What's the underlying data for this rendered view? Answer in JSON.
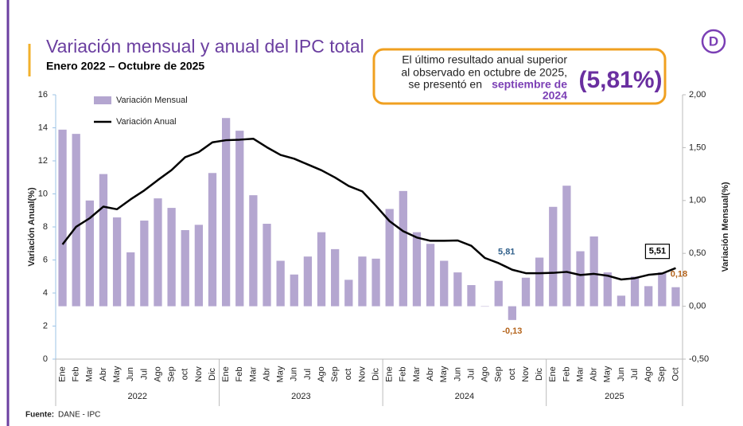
{
  "logo": "D",
  "chart_data": {
    "type": "bar-line",
    "title": "Variación mensual y anual del IPC total",
    "subtitle": "Enero 2022 – Octubre de 2025",
    "y_label": "Variación Anual(%)",
    "y2_label": "Variación Mensual(%)",
    "categories": [
      "Ene",
      "Feb",
      "Mar",
      "Abr",
      "May",
      "Jun",
      "Jul",
      "Ago",
      "Sep",
      "oct",
      "Nov",
      "Dic",
      "Ene",
      "Feb",
      "Mar",
      "Abr",
      "May",
      "Jun",
      "Jul",
      "Ago",
      "Sep",
      "oct",
      "Nov",
      "Dic",
      "Ene",
      "Feb",
      "Mar",
      "Abr",
      "May",
      "Jun",
      "Jul",
      "Ago",
      "Sep",
      "oct",
      "Nov",
      "Dic",
      "Ene",
      "Feb",
      "Mar",
      "Abr",
      "May",
      "Jun",
      "Jul",
      "Ago",
      "Sep",
      "Oct"
    ],
    "year_groups": [
      "2022",
      "2023",
      "2024",
      "2025"
    ],
    "series": [
      {
        "name": "Variación Mensual",
        "kind": "bar",
        "axis": "y2",
        "color": "#b4a6d0",
        "values": [
          1.67,
          1.63,
          1.0,
          1.25,
          0.84,
          0.51,
          0.81,
          1.02,
          0.93,
          0.72,
          0.77,
          1.26,
          1.78,
          1.66,
          1.05,
          0.78,
          0.43,
          0.3,
          0.47,
          0.7,
          0.54,
          0.25,
          0.47,
          0.45,
          0.92,
          1.09,
          0.7,
          0.59,
          0.43,
          0.32,
          0.2,
          0.0,
          0.24,
          -0.13,
          0.27,
          0.46,
          0.94,
          1.14,
          0.52,
          0.66,
          0.32,
          0.1,
          0.28,
          0.19,
          0.32,
          0.18
        ],
        "value_labels": [
          null,
          null,
          null,
          null,
          null,
          null,
          null,
          null,
          null,
          null,
          null,
          null,
          null,
          null,
          null,
          null,
          null,
          null,
          null,
          null,
          null,
          null,
          null,
          null,
          null,
          null,
          null,
          null,
          null,
          null,
          null,
          null,
          null,
          "-0,13",
          null,
          null,
          null,
          null,
          null,
          null,
          null,
          null,
          null,
          null,
          null,
          "0,18"
        ]
      },
      {
        "name": "Variación Anual",
        "kind": "line",
        "color": "#000000",
        "values": [
          6.94,
          8.01,
          8.53,
          9.23,
          9.07,
          9.67,
          10.21,
          10.84,
          11.44,
          12.22,
          12.53,
          13.12,
          13.25,
          13.28,
          13.34,
          12.82,
          12.36,
          12.13,
          11.78,
          11.43,
          10.99,
          10.48,
          10.15,
          9.28,
          8.35,
          7.74,
          7.36,
          7.16,
          7.16,
          7.18,
          6.86,
          6.12,
          5.81,
          5.41,
          5.2,
          5.2,
          5.22,
          5.28,
          5.09,
          5.16,
          5.05,
          4.82,
          4.9,
          5.1,
          5.18,
          5.51
        ],
        "value_labels": [
          null,
          null,
          null,
          null,
          null,
          null,
          null,
          null,
          null,
          null,
          null,
          null,
          null,
          null,
          null,
          null,
          null,
          null,
          null,
          null,
          null,
          null,
          null,
          null,
          null,
          null,
          null,
          null,
          null,
          null,
          null,
          null,
          "5,81",
          null,
          null,
          null,
          null,
          null,
          null,
          null,
          null,
          null,
          null,
          null,
          null,
          "5,51"
        ]
      }
    ],
    "ylim": [
      0,
      16
    ],
    "yticks": [
      0,
      2,
      4,
      6,
      8,
      10,
      12,
      14,
      16
    ],
    "y2lim": [
      -0.5,
      2.0
    ],
    "y2ticks": [
      {
        "value": -0.5,
        "label": "-0,50"
      },
      {
        "value": 0,
        "label": "0,00"
      },
      {
        "value": 0.5,
        "label": "0,50"
      },
      {
        "value": 1.0,
        "label": "1,00"
      },
      {
        "value": 1.5,
        "label": "1,50"
      },
      {
        "value": 2.0,
        "label": "2,00"
      }
    ],
    "annotation": {
      "lines": [
        "El último resultado anual superior",
        "al observado en octubre de 2025,",
        "se presentó en"
      ],
      "highlight": [
        "septiembre de",
        "2024"
      ],
      "value": "(5,81%)"
    },
    "source": {
      "label": "Fuente:",
      "text": "DANE - IPC"
    }
  }
}
